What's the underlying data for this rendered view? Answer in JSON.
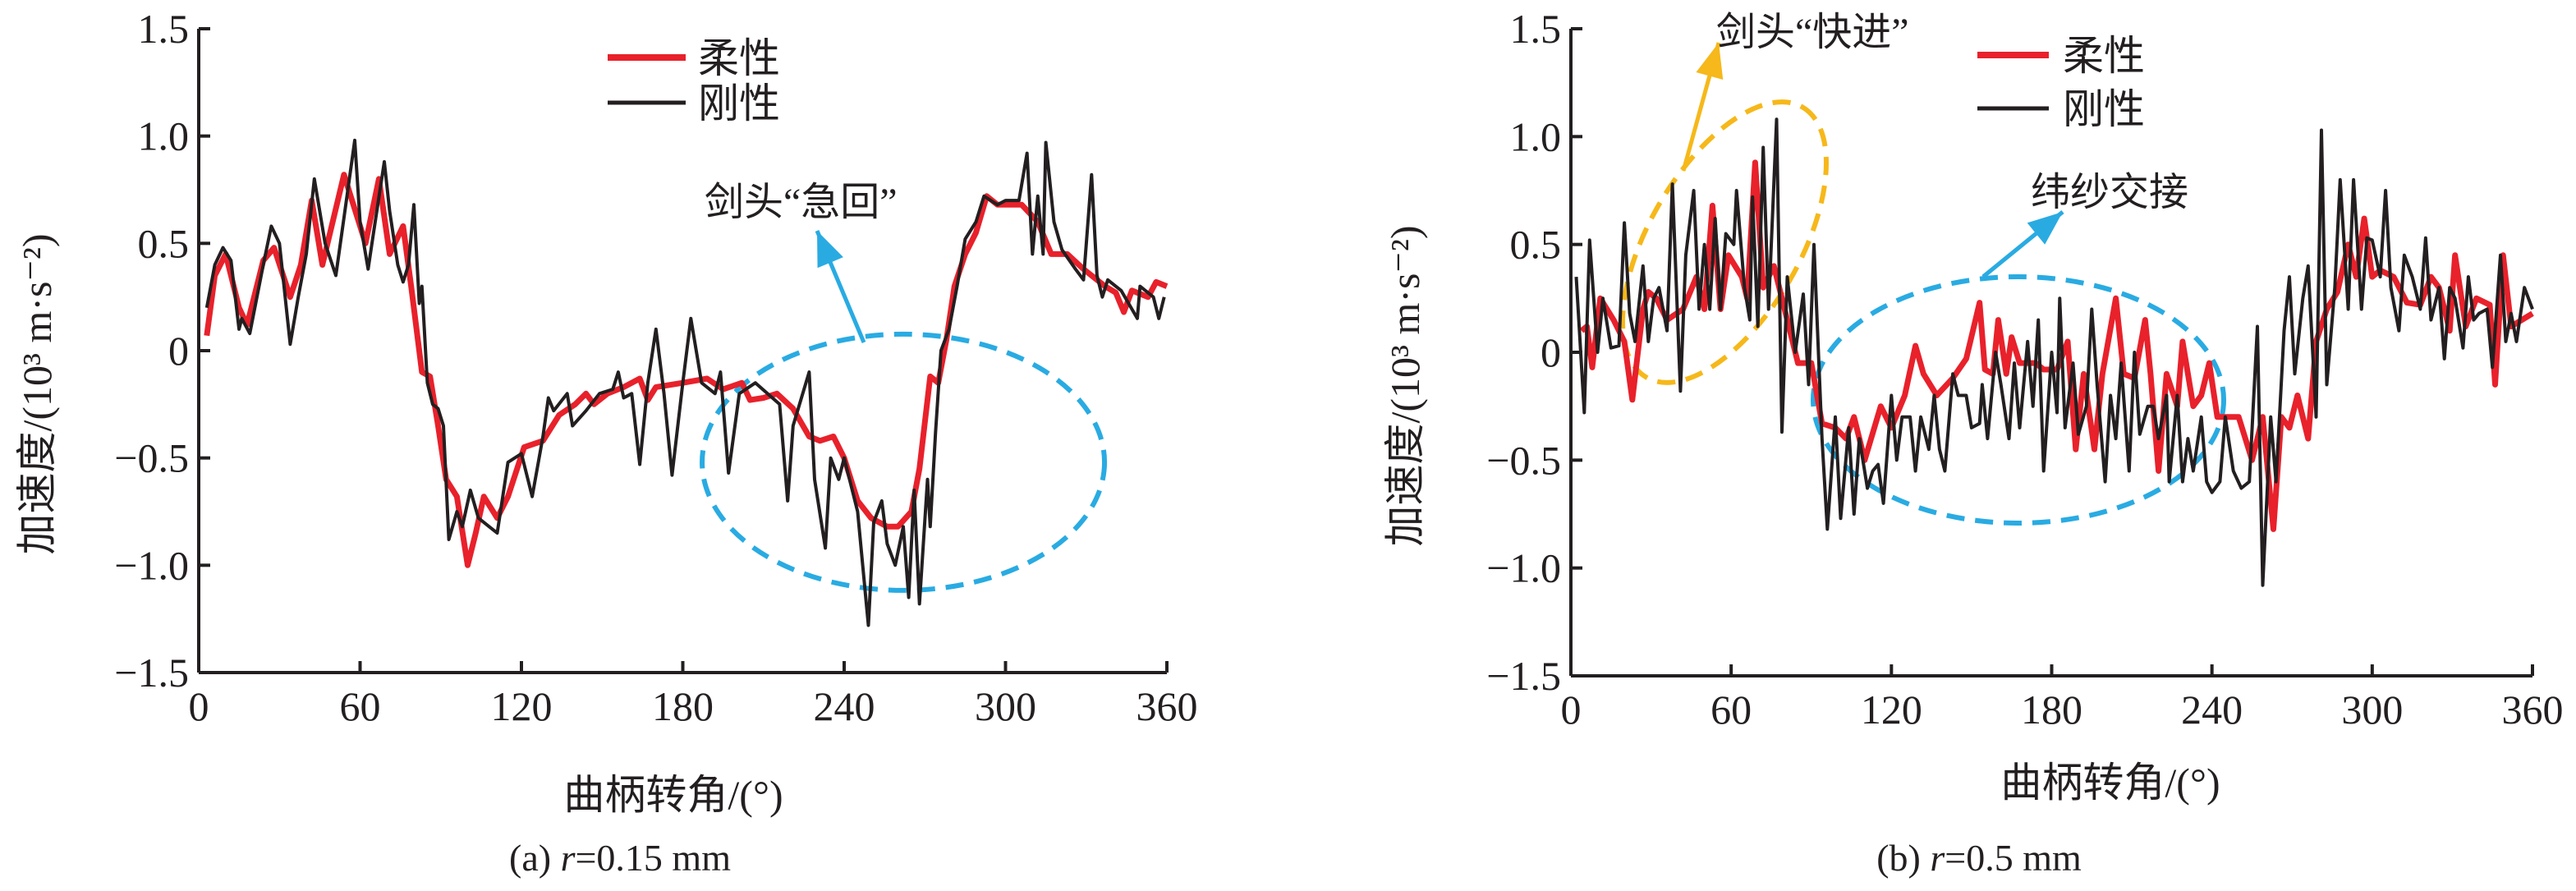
{
  "colors": {
    "flexible": "#e8212b",
    "rigid": "#231f20",
    "annotation_blue": "#29abe2",
    "annotation_yellow": "#f6b81a",
    "axis": "#231f20"
  },
  "chart_data": [
    {
      "type": "line",
      "caption": "(a) r=0.15 mm",
      "caption_prefix": "(a) ",
      "caption_var": "r",
      "caption_rest": "=0.15 mm",
      "xlabel": "曲柄转角/(°)",
      "ylabel": "加速度/(10³ m·s⁻²)",
      "xlim": [
        0,
        360
      ],
      "ylim": [
        -1.5,
        1.5
      ],
      "xticks": [
        "0",
        "60",
        "120",
        "180",
        "240",
        "300",
        "360"
      ],
      "yticks": [
        "−1.5",
        "−1.0",
        "−0.5",
        "0",
        "0.5",
        "1.0",
        "1.5"
      ],
      "legend_position": "top-center",
      "annotations": [
        {
          "text": "剑头“急回”",
          "color": "annotation_blue"
        }
      ],
      "series": [
        {
          "name": "柔性",
          "color": "#e8212b",
          "x": [
            3,
            6,
            10,
            15,
            18,
            24,
            28,
            34,
            38,
            42,
            46,
            54,
            57,
            62,
            67,
            71,
            76,
            79,
            83,
            86,
            89,
            92,
            96,
            100,
            103,
            106,
            111,
            115,
            121,
            128,
            134,
            140,
            144,
            147,
            152,
            158,
            164,
            167,
            170,
            180,
            189,
            195,
            202,
            205,
            210,
            215,
            221,
            227,
            231,
            236,
            240,
            245,
            250,
            256,
            260,
            265,
            268,
            272,
            275,
            278,
            281,
            285,
            289,
            293,
            297,
            306,
            312,
            317,
            323,
            329,
            337,
            341,
            344,
            347,
            353,
            356,
            360
          ],
          "y": [
            0.07,
            0.35,
            0.45,
            0.2,
            0.12,
            0.42,
            0.48,
            0.25,
            0.4,
            0.7,
            0.4,
            0.82,
            0.7,
            0.5,
            0.8,
            0.45,
            0.58,
            0.3,
            -0.1,
            -0.12,
            -0.35,
            -0.6,
            -0.68,
            -1.0,
            -0.85,
            -0.68,
            -0.78,
            -0.68,
            -0.45,
            -0.42,
            -0.3,
            -0.25,
            -0.2,
            -0.25,
            -0.2,
            -0.17,
            -0.13,
            -0.23,
            -0.17,
            -0.15,
            -0.13,
            -0.18,
            -0.15,
            -0.23,
            -0.22,
            -0.2,
            -0.27,
            -0.4,
            -0.42,
            -0.4,
            -0.5,
            -0.7,
            -0.78,
            -0.82,
            -0.82,
            -0.75,
            -0.55,
            -0.12,
            -0.15,
            0.05,
            0.3,
            0.45,
            0.55,
            0.72,
            0.68,
            0.68,
            0.6,
            0.45,
            0.45,
            0.38,
            0.3,
            0.27,
            0.18,
            0.28,
            0.25,
            0.32,
            0.3
          ]
        },
        {
          "name": "刚性",
          "color": "#231f20",
          "x": [
            3,
            6,
            9,
            12,
            15,
            16,
            19,
            24,
            27,
            30,
            34,
            37,
            40,
            43,
            47,
            51,
            54,
            58,
            60,
            63,
            65,
            69,
            71,
            74,
            76,
            78,
            80,
            82,
            83,
            85,
            87,
            89,
            91,
            93,
            96,
            98,
            101,
            104,
            108,
            111,
            115,
            120,
            124,
            128,
            130,
            132,
            137,
            139,
            144,
            149,
            154,
            156,
            158,
            161,
            164,
            167,
            170,
            173,
            176,
            180,
            183,
            187,
            192,
            194,
            197,
            201,
            207,
            216,
            219,
            221,
            227,
            229,
            233,
            235,
            238,
            240,
            245,
            249,
            251,
            254,
            256,
            259,
            262,
            264,
            266,
            268,
            271,
            272,
            274,
            276,
            279,
            282,
            285,
            289,
            292,
            297,
            300,
            305,
            308,
            310,
            312,
            314,
            315,
            318,
            321,
            326,
            329,
            332,
            334,
            336,
            338,
            343,
            349,
            350,
            355,
            357,
            359
          ],
          "y": [
            0.2,
            0.4,
            0.48,
            0.42,
            0.1,
            0.15,
            0.08,
            0.4,
            0.58,
            0.5,
            0.03,
            0.25,
            0.45,
            0.8,
            0.5,
            0.35,
            0.62,
            0.98,
            0.6,
            0.38,
            0.55,
            0.88,
            0.65,
            0.4,
            0.32,
            0.4,
            0.68,
            0.22,
            0.3,
            -0.15,
            -0.25,
            -0.27,
            -0.35,
            -0.88,
            -0.75,
            -0.82,
            -0.65,
            -0.78,
            -0.82,
            -0.85,
            -0.52,
            -0.48,
            -0.68,
            -0.4,
            -0.22,
            -0.28,
            -0.2,
            -0.35,
            -0.28,
            -0.2,
            -0.18,
            -0.1,
            -0.22,
            -0.2,
            -0.53,
            -0.15,
            0.1,
            -0.2,
            -0.58,
            -0.15,
            0.15,
            -0.15,
            -0.2,
            -0.1,
            -0.57,
            -0.2,
            -0.15,
            -0.25,
            -0.7,
            -0.35,
            -0.1,
            -0.6,
            -0.92,
            -0.5,
            -0.6,
            -0.5,
            -0.75,
            -1.28,
            -0.8,
            -0.7,
            -0.9,
            -1.0,
            -0.82,
            -1.15,
            -0.65,
            -1.18,
            -0.6,
            -0.82,
            -0.38,
            0.0,
            0.1,
            0.3,
            0.52,
            0.6,
            0.72,
            0.68,
            0.7,
            0.7,
            0.92,
            0.45,
            0.72,
            0.45,
            0.97,
            0.6,
            0.47,
            0.38,
            0.33,
            0.82,
            0.35,
            0.25,
            0.33,
            0.28,
            0.15,
            0.3,
            0.25,
            0.15,
            0.25
          ]
        }
      ]
    },
    {
      "type": "line",
      "caption": "(b) r=0.5 mm",
      "caption_prefix": "(b) ",
      "caption_var": "r",
      "caption_rest": "=0.5 mm",
      "xlabel": "曲柄转角/(°)",
      "ylabel": "加速度/(10³ m·s⁻²)",
      "xlim": [
        0,
        360
      ],
      "ylim": [
        -1.5,
        1.5
      ],
      "xticks": [
        "0",
        "60",
        "120",
        "180",
        "240",
        "300",
        "360"
      ],
      "yticks": [
        "−1.5",
        "−1.0",
        "−0.5",
        "0",
        "0.5",
        "1.0",
        "1.5"
      ],
      "legend_position": "top-right",
      "annotations": [
        {
          "text": "剑头“快进”",
          "color": "annotation_yellow"
        },
        {
          "text": "纬纱交接",
          "color": "annotation_blue"
        }
      ],
      "series": [
        {
          "name": "柔性",
          "color": "#e8212b",
          "x": [
            4,
            6,
            8,
            11,
            16,
            20,
            23,
            27,
            29,
            32,
            36,
            42,
            47,
            50,
            53,
            56,
            59,
            64,
            66,
            69,
            72,
            76,
            81,
            85,
            90,
            94,
            99,
            103,
            106,
            110,
            116,
            120,
            125,
            129,
            132,
            137,
            143,
            148,
            153,
            155,
            158,
            160,
            163,
            165,
            168,
            171,
            174,
            177,
            182,
            186,
            189,
            192,
            196,
            199,
            204,
            207,
            211,
            215,
            217,
            220,
            223,
            227,
            229,
            233,
            236,
            239,
            242,
            245,
            250,
            255,
            259,
            263,
            266,
            269,
            272,
            276,
            279,
            283,
            287,
            291,
            294,
            297,
            300,
            303,
            308,
            313,
            318,
            322,
            325,
            329,
            331,
            335,
            339,
            344,
            346,
            349,
            352,
            360
          ],
          "y": [
            0.1,
            0.12,
            -0.07,
            0.25,
            0.15,
            0.05,
            -0.22,
            0.2,
            0.28,
            0.25,
            0.15,
            0.2,
            0.35,
            0.2,
            0.68,
            0.2,
            0.45,
            0.35,
            0.25,
            0.88,
            0.3,
            0.4,
            0.15,
            -0.05,
            -0.05,
            -0.33,
            -0.35,
            -0.4,
            -0.3,
            -0.5,
            -0.25,
            -0.35,
            -0.2,
            0.03,
            -0.1,
            -0.2,
            -0.12,
            -0.03,
            0.23,
            -0.08,
            -0.1,
            0.15,
            -0.1,
            0.07,
            -0.05,
            -0.05,
            -0.05,
            -0.08,
            -0.08,
            0.05,
            -0.45,
            -0.1,
            -0.45,
            -0.1,
            0.25,
            -0.1,
            -0.12,
            0.15,
            -0.1,
            -0.55,
            -0.1,
            -0.25,
            0.05,
            -0.25,
            -0.2,
            -0.05,
            -0.3,
            -0.3,
            -0.3,
            -0.5,
            -0.3,
            -0.82,
            -0.3,
            -0.35,
            -0.2,
            -0.4,
            0.05,
            0.2,
            0.28,
            0.5,
            0.35,
            0.62,
            0.35,
            0.38,
            0.35,
            0.23,
            0.22,
            0.35,
            0.3,
            0.1,
            0.45,
            0.12,
            0.25,
            0.22,
            -0.15,
            0.45,
            0.12,
            0.18
          ]
        },
        {
          "name": "刚性",
          "color": "#231f20",
          "x": [
            2,
            5,
            7,
            10,
            12,
            15,
            18,
            20,
            22,
            24,
            27,
            29,
            31,
            33,
            36,
            38,
            41,
            43,
            46,
            48,
            50,
            52,
            54,
            56,
            58,
            61,
            62,
            65,
            67,
            68,
            70,
            72,
            74,
            77,
            79,
            81,
            84,
            87,
            89,
            91,
            94,
            96,
            99,
            101,
            104,
            106,
            108,
            111,
            113,
            115,
            117,
            120,
            122,
            124,
            127,
            129,
            131,
            134,
            136,
            138,
            140,
            143,
            145,
            148,
            150,
            153,
            154,
            156,
            159,
            161,
            164,
            166,
            168,
            171,
            173,
            175,
            177,
            180,
            182,
            183,
            185,
            188,
            190,
            193,
            195,
            197,
            200,
            202,
            204,
            206,
            209,
            211,
            213,
            216,
            218,
            220,
            223,
            224,
            227,
            229,
            231,
            233,
            236,
            238,
            240,
            243,
            245,
            248,
            251,
            254,
            257,
            259,
            262,
            264,
            267,
            269,
            271,
            274,
            276,
            279,
            281,
            283,
            286,
            288,
            291,
            293,
            296,
            298,
            300,
            303,
            305,
            307,
            310,
            312,
            315,
            318,
            320,
            322,
            325,
            327,
            329,
            331,
            334,
            336,
            338,
            340,
            343,
            345,
            348,
            350,
            352,
            354,
            357,
            360
          ],
          "y": [
            0.35,
            -0.28,
            0.52,
            0.0,
            0.25,
            0.02,
            0.03,
            0.6,
            0.18,
            0.05,
            0.4,
            0.05,
            0.25,
            0.3,
            0.1,
            0.78,
            -0.18,
            0.45,
            0.75,
            0.2,
            0.5,
            0.2,
            0.62,
            0.2,
            0.55,
            0.5,
            0.75,
            0.3,
            0.15,
            0.72,
            0.12,
            0.95,
            0.2,
            1.08,
            -0.37,
            0.35,
            0.0,
            0.27,
            -0.15,
            0.5,
            -0.4,
            -0.82,
            -0.3,
            -0.77,
            -0.35,
            -0.75,
            -0.4,
            -0.63,
            -0.55,
            -0.52,
            -0.7,
            -0.2,
            -0.5,
            -0.3,
            -0.3,
            -0.55,
            -0.3,
            -0.45,
            -0.2,
            -0.45,
            -0.55,
            -0.1,
            -0.2,
            -0.2,
            -0.35,
            -0.33,
            -0.15,
            -0.4,
            0.0,
            -0.15,
            -0.4,
            -0.05,
            -0.35,
            0.05,
            -0.25,
            0.15,
            -0.55,
            0.0,
            -0.28,
            0.25,
            -0.35,
            -0.05,
            -0.38,
            -0.25,
            0.2,
            -0.15,
            -0.6,
            -0.2,
            -0.4,
            -0.05,
            -0.55,
            0.0,
            -0.38,
            -0.25,
            -0.25,
            -0.4,
            -0.2,
            -0.6,
            -0.2,
            -0.6,
            -0.4,
            -0.55,
            -0.3,
            -0.6,
            -0.65,
            -0.6,
            -0.3,
            -0.55,
            -0.63,
            -0.6,
            0.12,
            -1.08,
            -0.3,
            -0.6,
            0.1,
            0.35,
            -0.1,
            0.25,
            0.4,
            -0.3,
            1.03,
            -0.15,
            0.3,
            0.8,
            0.2,
            0.8,
            0.2,
            0.53,
            0.52,
            0.35,
            0.75,
            0.3,
            0.1,
            0.45,
            0.35,
            0.2,
            0.53,
            0.15,
            0.3,
            -0.03,
            0.3,
            0.25,
            0.02,
            0.35,
            0.15,
            0.18,
            0.2,
            -0.07,
            0.45,
            0.05,
            0.18,
            0.05,
            0.3,
            0.2
          ]
        }
      ]
    }
  ]
}
